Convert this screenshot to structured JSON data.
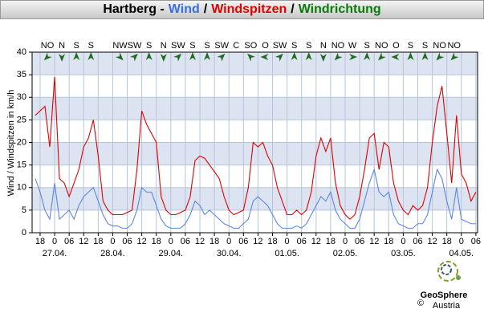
{
  "chart_data": {
    "type": "line",
    "title_parts": [
      {
        "text": "Hartberg -",
        "color": "#000000"
      },
      {
        "text": "Wind",
        "color": "#3a6fe0"
      },
      {
        "text": "/",
        "color": "#000000"
      },
      {
        "text": "Windspitzen",
        "color": "#e00000"
      },
      {
        "text": "/",
        "color": "#000000"
      },
      {
        "text": "Windrichtung",
        "color": "#0a7a0a"
      }
    ],
    "y_label": "Wind / Windspitzen in km/h",
    "xlim": [
      -9.3,
      174.7
    ],
    "ylim": [
      0,
      40
    ],
    "yticks": [
      0,
      5,
      10,
      15,
      20,
      25,
      30,
      35,
      40
    ],
    "grid": true,
    "xticks": [
      {
        "value": -6,
        "label": "18"
      },
      {
        "value": 0,
        "label": "0"
      },
      {
        "value": 6,
        "label": "06"
      },
      {
        "value": 12,
        "label": "12"
      },
      {
        "value": 18,
        "label": "18"
      },
      {
        "value": 24,
        "label": "0"
      },
      {
        "value": 30,
        "label": "06"
      },
      {
        "value": 36,
        "label": "12"
      },
      {
        "value": 42,
        "label": "18"
      },
      {
        "value": 48,
        "label": "0"
      },
      {
        "value": 54,
        "label": "06"
      },
      {
        "value": 60,
        "label": "12"
      },
      {
        "value": 66,
        "label": "18"
      },
      {
        "value": 72,
        "label": "0"
      },
      {
        "value": 78,
        "label": "06"
      },
      {
        "value": 84,
        "label": "12"
      },
      {
        "value": 90,
        "label": "18"
      },
      {
        "value": 96,
        "label": "0"
      },
      {
        "value": 102,
        "label": "06"
      },
      {
        "value": 108,
        "label": "12"
      },
      {
        "value": 114,
        "label": "18"
      },
      {
        "value": 120,
        "label": "0"
      },
      {
        "value": 126,
        "label": "06"
      },
      {
        "value": 132,
        "label": "12"
      },
      {
        "value": 138,
        "label": "18"
      },
      {
        "value": 144,
        "label": "0"
      },
      {
        "value": 150,
        "label": "06"
      },
      {
        "value": 156,
        "label": "12"
      },
      {
        "value": 162,
        "label": "18"
      },
      {
        "value": 168,
        "label": "0"
      },
      {
        "value": 174,
        "label": "06"
      }
    ],
    "date_ticks": [
      {
        "value": 0,
        "label": "27.04."
      },
      {
        "value": 24,
        "label": "28.04."
      },
      {
        "value": 48,
        "label": "29.04."
      },
      {
        "value": 72,
        "label": "30.04."
      },
      {
        "value": 96,
        "label": "01.05."
      },
      {
        "value": 120,
        "label": "02.05."
      },
      {
        "value": 144,
        "label": "03.05."
      },
      {
        "value": 168,
        "label": "04.05."
      }
    ],
    "x": [
      -8,
      -6,
      -4,
      -2,
      0,
      2,
      4,
      6,
      8,
      10,
      12,
      14,
      16,
      18,
      20,
      22,
      24,
      26,
      28,
      30,
      32,
      34,
      36,
      38,
      40,
      42,
      44,
      46,
      48,
      50,
      52,
      54,
      56,
      58,
      60,
      62,
      64,
      66,
      68,
      70,
      72,
      74,
      76,
      78,
      80,
      82,
      84,
      86,
      88,
      90,
      92,
      94,
      96,
      98,
      100,
      102,
      104,
      106,
      108,
      110,
      112,
      114,
      116,
      118,
      120,
      122,
      124,
      126,
      128,
      130,
      132,
      134,
      136,
      138,
      140,
      142,
      144,
      146,
      148,
      150,
      152,
      154,
      156,
      158,
      160,
      162,
      164,
      166,
      168,
      170,
      172,
      174
    ],
    "series": [
      {
        "name": "Wind",
        "color": "#5b86e5",
        "values": [
          12,
          9,
          5,
          3,
          11,
          3,
          4,
          5,
          3,
          6,
          8,
          9,
          10,
          7,
          4,
          2,
          1.5,
          1.5,
          1,
          1,
          2,
          5,
          10,
          9,
          9,
          6,
          3,
          1.5,
          1,
          1,
          1,
          2,
          4,
          7,
          6,
          4,
          5,
          4,
          3,
          2,
          1.5,
          1,
          1,
          2,
          3,
          7,
          8,
          7,
          6,
          4,
          2,
          1,
          1,
          1,
          1.5,
          1,
          2,
          4,
          6,
          8,
          7,
          9,
          5,
          3,
          2,
          1,
          1,
          3,
          7,
          11,
          14,
          9,
          8,
          9,
          4,
          2,
          1.5,
          1,
          1,
          2,
          2,
          4,
          9,
          14,
          12,
          7,
          3,
          10,
          3,
          2.5,
          2,
          2
        ]
      },
      {
        "name": "Windspitzen",
        "color": "#e00000",
        "values": [
          26,
          27,
          28,
          19,
          34.5,
          12,
          11,
          8,
          11,
          14,
          19,
          21,
          25,
          17,
          7,
          5,
          4,
          4,
          4,
          4.5,
          5,
          14,
          27,
          24,
          22,
          20,
          8,
          5,
          4,
          4,
          4.5,
          5,
          8,
          16,
          17,
          16.5,
          15,
          13.5,
          12,
          8,
          5,
          4,
          4.5,
          5,
          10,
          20,
          19,
          20,
          17,
          15,
          10,
          7,
          4,
          4,
          5,
          4,
          5,
          9,
          17,
          21,
          18,
          21,
          11,
          6,
          4,
          3,
          4,
          8,
          14,
          21,
          22,
          14,
          20,
          19,
          11,
          7,
          5,
          4,
          6,
          5,
          6,
          10,
          20,
          28,
          32.5,
          22,
          11,
          26,
          13,
          11,
          7,
          9
        ]
      }
    ],
    "directions": {
      "name": "Windrichtung",
      "color": "#1f6b1f",
      "x": [
        -3,
        3,
        9,
        15,
        21,
        27,
        33,
        39,
        45,
        51,
        57,
        63,
        69,
        75,
        81,
        87,
        93,
        99,
        105,
        111,
        117,
        123,
        129,
        135,
        141,
        147,
        153,
        159,
        165
      ],
      "labels": [
        "NO",
        "N",
        "S",
        "S",
        null,
        "NW",
        "SW",
        "S",
        "N",
        "SW",
        "S",
        "S",
        "SW",
        "C",
        "SO",
        "O",
        "SW",
        "S",
        "S",
        "N",
        "NO",
        "W",
        "S",
        "NO",
        "O",
        "S",
        "S",
        "NO",
        "NO"
      ]
    },
    "logo": {
      "name": "GeoSphere",
      "sub": "Austria",
      "copyright": "©"
    }
  }
}
